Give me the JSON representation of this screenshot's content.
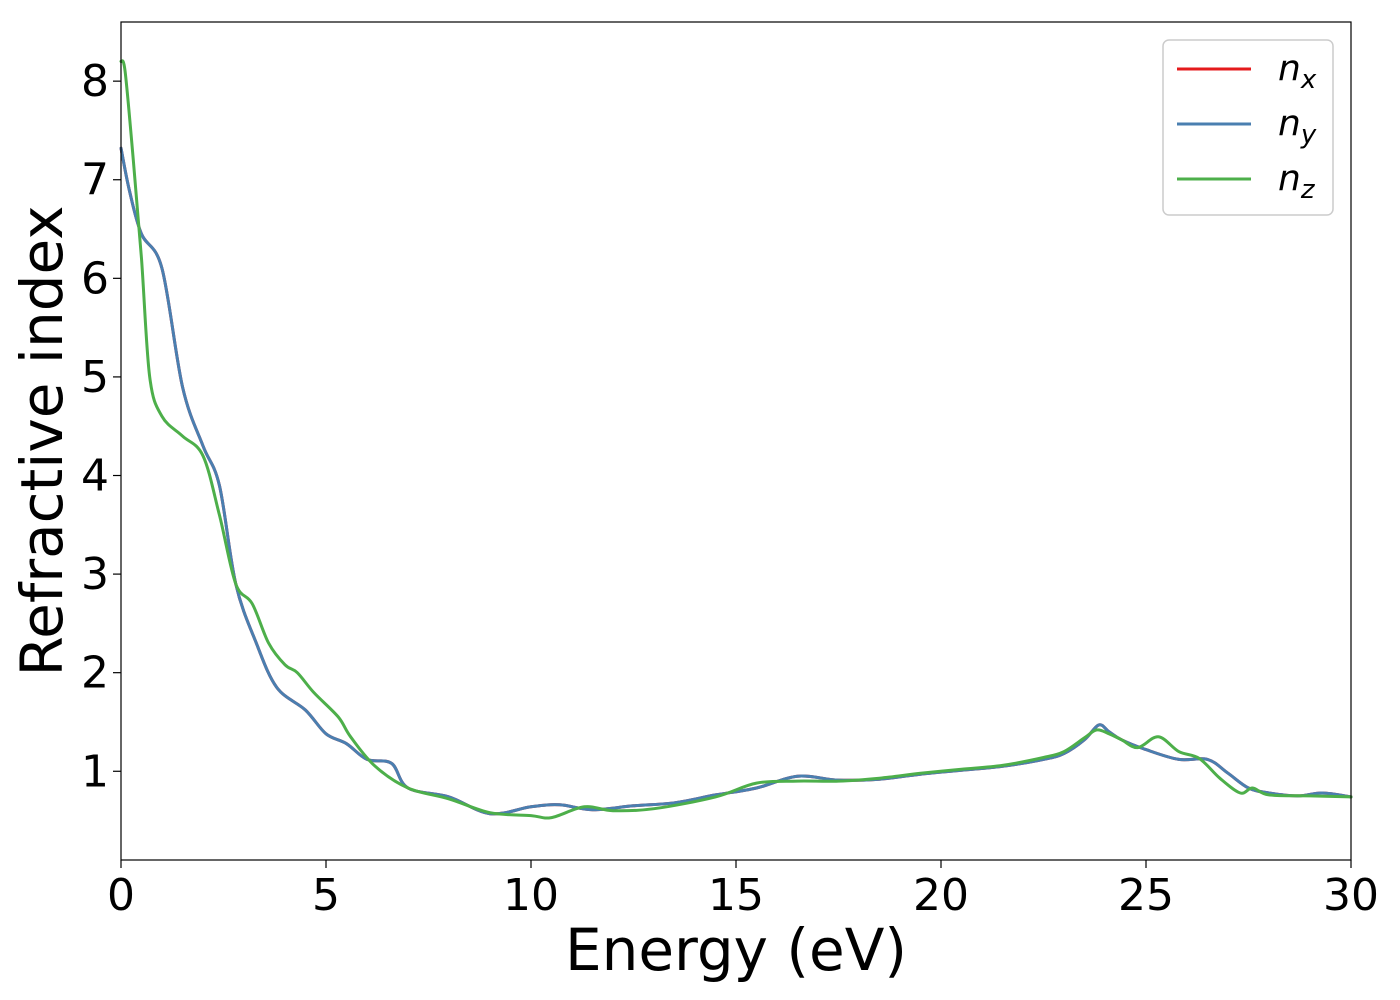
{
  "chart_data": {
    "type": "line",
    "title": "",
    "xlabel": "Energy (eV)",
    "ylabel": "Refractive index",
    "xlim": [
      0,
      30
    ],
    "ylim": [
      0.1,
      8.6
    ],
    "xticks": [
      "0",
      "5",
      "10",
      "15",
      "20",
      "25",
      "30"
    ],
    "yticks": [
      "1",
      "2",
      "3",
      "4",
      "5",
      "6",
      "7",
      "8"
    ],
    "grid": false,
    "legend_position": "top-right",
    "series": [
      {
        "name": "n",
        "subscript": "x",
        "color": "#e41a1c",
        "x": [
          0,
          0.2,
          0.5,
          1.0,
          1.5,
          2.0,
          2.4,
          2.8,
          3.3,
          3.8,
          4.5,
          5.0,
          5.5,
          6.0,
          6.6,
          7.0,
          8.0,
          9.0,
          10.0,
          10.7,
          11.5,
          12.5,
          13.5,
          14.5,
          15.5,
          16.5,
          17.5,
          18.5,
          19.5,
          20.5,
          21.5,
          22.5,
          23.0,
          23.5,
          23.85,
          24.1,
          24.4,
          25.0,
          25.8,
          26.5,
          27.0,
          27.5,
          28.0,
          28.7,
          29.3,
          30.0
        ],
        "y": [
          7.32,
          6.9,
          6.45,
          6.1,
          4.9,
          4.3,
          3.9,
          2.9,
          2.3,
          1.85,
          1.62,
          1.38,
          1.28,
          1.12,
          1.08,
          0.83,
          0.74,
          0.57,
          0.64,
          0.66,
          0.61,
          0.65,
          0.68,
          0.76,
          0.83,
          0.95,
          0.91,
          0.92,
          0.97,
          1.01,
          1.05,
          1.12,
          1.18,
          1.32,
          1.47,
          1.4,
          1.32,
          1.22,
          1.12,
          1.12,
          0.98,
          0.83,
          0.78,
          0.75,
          0.78,
          0.74
        ]
      },
      {
        "name": "n",
        "subscript": "y",
        "color": "#4a7fb0",
        "x": [
          0,
          0.2,
          0.5,
          1.0,
          1.5,
          2.0,
          2.4,
          2.8,
          3.3,
          3.8,
          4.5,
          5.0,
          5.5,
          6.0,
          6.6,
          7.0,
          8.0,
          9.0,
          10.0,
          10.7,
          11.5,
          12.5,
          13.5,
          14.5,
          15.5,
          16.5,
          17.5,
          18.5,
          19.5,
          20.5,
          21.5,
          22.5,
          23.0,
          23.5,
          23.85,
          24.1,
          24.4,
          25.0,
          25.8,
          26.5,
          27.0,
          27.5,
          28.0,
          28.7,
          29.3,
          30.0
        ],
        "y": [
          7.32,
          6.9,
          6.45,
          6.1,
          4.9,
          4.3,
          3.9,
          2.9,
          2.3,
          1.85,
          1.62,
          1.38,
          1.28,
          1.12,
          1.08,
          0.83,
          0.74,
          0.57,
          0.64,
          0.66,
          0.61,
          0.65,
          0.68,
          0.76,
          0.83,
          0.95,
          0.91,
          0.92,
          0.97,
          1.01,
          1.05,
          1.12,
          1.18,
          1.32,
          1.47,
          1.4,
          1.32,
          1.22,
          1.12,
          1.12,
          0.98,
          0.83,
          0.78,
          0.75,
          0.78,
          0.74
        ]
      },
      {
        "name": "n",
        "subscript": "z",
        "color": "#4daf4a",
        "x": [
          0,
          0.1,
          0.3,
          0.5,
          0.7,
          1.0,
          1.5,
          2.0,
          2.4,
          2.8,
          3.2,
          3.6,
          4.0,
          4.3,
          4.7,
          5.3,
          5.6,
          6.2,
          7.0,
          8.0,
          9.0,
          10.0,
          10.5,
          11.3,
          12.0,
          13.0,
          14.5,
          15.5,
          16.5,
          17.5,
          18.5,
          19.5,
          20.5,
          21.5,
          22.5,
          23.0,
          23.5,
          23.8,
          24.1,
          24.4,
          24.8,
          25.3,
          25.8,
          26.3,
          26.8,
          27.3,
          27.6,
          28.0,
          29.0,
          30.0
        ],
        "y": [
          8.2,
          8.1,
          7.2,
          6.2,
          5.0,
          4.6,
          4.4,
          4.2,
          3.6,
          2.9,
          2.7,
          2.3,
          2.08,
          2.0,
          1.8,
          1.55,
          1.35,
          1.05,
          0.83,
          0.72,
          0.58,
          0.55,
          0.53,
          0.64,
          0.6,
          0.62,
          0.74,
          0.88,
          0.9,
          0.9,
          0.93,
          0.98,
          1.02,
          1.06,
          1.14,
          1.2,
          1.34,
          1.42,
          1.38,
          1.32,
          1.24,
          1.35,
          1.2,
          1.13,
          0.93,
          0.78,
          0.83,
          0.76,
          0.75,
          0.74
        ]
      }
    ]
  }
}
